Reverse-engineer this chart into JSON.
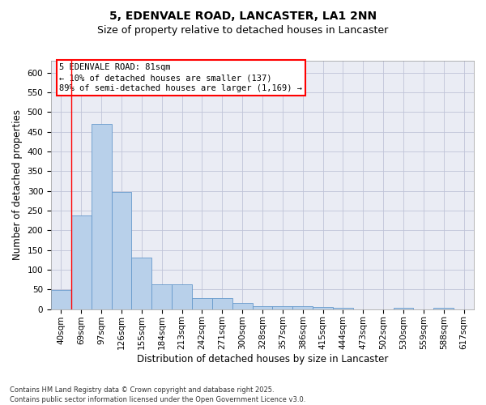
{
  "title1": "5, EDENVALE ROAD, LANCASTER, LA1 2NN",
  "title2": "Size of property relative to detached houses in Lancaster",
  "xlabel": "Distribution of detached houses by size in Lancaster",
  "ylabel": "Number of detached properties",
  "categories": [
    "40sqm",
    "69sqm",
    "97sqm",
    "126sqm",
    "155sqm",
    "184sqm",
    "213sqm",
    "242sqm",
    "271sqm",
    "300sqm",
    "328sqm",
    "357sqm",
    "386sqm",
    "415sqm",
    "444sqm",
    "473sqm",
    "502sqm",
    "530sqm",
    "559sqm",
    "588sqm",
    "617sqm"
  ],
  "values": [
    48,
    238,
    470,
    298,
    130,
    62,
    62,
    28,
    28,
    15,
    8,
    8,
    8,
    6,
    3,
    0,
    0,
    3,
    0,
    3,
    0
  ],
  "bar_color": "#b8d0ea",
  "bar_edge_color": "#6699cc",
  "bg_color": "#eaecf4",
  "grid_color": "#c0c4d8",
  "annotation_line1": "5 EDENVALE ROAD: 81sqm",
  "annotation_line2": "← 10% of detached houses are smaller (137)",
  "annotation_line3": "89% of semi-detached houses are larger (1,169) →",
  "vline_x": 1.5,
  "ylim": [
    0,
    630
  ],
  "yticks": [
    0,
    50,
    100,
    150,
    200,
    250,
    300,
    350,
    400,
    450,
    500,
    550,
    600
  ],
  "footnote": "Contains HM Land Registry data © Crown copyright and database right 2025.\nContains public sector information licensed under the Open Government Licence v3.0.",
  "title_fontsize": 10,
  "subtitle_fontsize": 9,
  "tick_fontsize": 7.5,
  "axis_label_fontsize": 8.5,
  "annot_fontsize": 7.5,
  "footnote_fontsize": 6
}
